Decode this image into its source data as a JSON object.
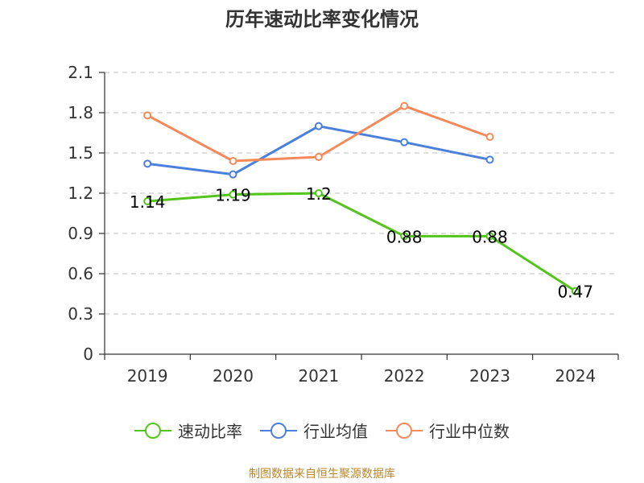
{
  "chart_data": {
    "type": "line",
    "title": "历年速动比率变化情况",
    "categories": [
      "2019",
      "2020",
      "2021",
      "2022",
      "2023",
      "2024"
    ],
    "ylim": [
      0,
      2.1
    ],
    "yticks": [
      "0",
      "0.3",
      "0.6",
      "0.9",
      "1.2",
      "1.5",
      "1.8",
      "2.1"
    ],
    "grid": true,
    "legend_position": "bottom",
    "series": [
      {
        "name": "速动比率",
        "color": "#52c41a",
        "values": [
          1.14,
          1.19,
          1.2,
          0.88,
          0.88,
          0.47
        ],
        "labels": [
          "1.14",
          "1.19",
          "1.2",
          "0.88",
          "0.88",
          "0.47"
        ]
      },
      {
        "name": "行业均值",
        "color": "#4a7fdb",
        "values": [
          1.42,
          1.34,
          1.7,
          1.58,
          1.45,
          null
        ]
      },
      {
        "name": "行业中位数",
        "color": "#f5895a",
        "values": [
          1.78,
          1.44,
          1.47,
          1.85,
          1.62,
          null
        ]
      }
    ]
  },
  "footer": "制图数据来自恒生聚源数据库"
}
